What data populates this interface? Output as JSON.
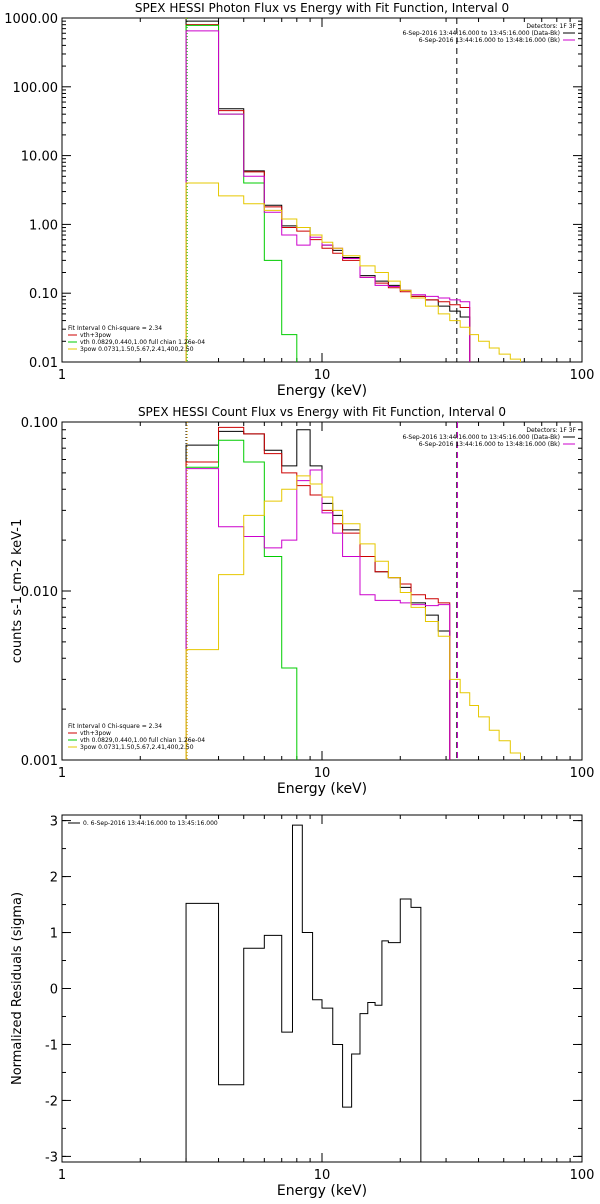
{
  "chart_data": [
    {
      "type": "line",
      "title": "SPEX HESSI Photon Flux vs Energy with Fit Function, Interval 0",
      "xlabel": "Energy (keV)",
      "ylabel": "",
      "xscale": "log",
      "yscale": "log",
      "xlim": [
        1,
        100
      ],
      "ylim": [
        0.01,
        1000
      ],
      "xticks": [
        {
          "v": 1,
          "label": "1"
        },
        {
          "v": 10,
          "label": "10"
        },
        {
          "v": 100,
          "label": "100"
        }
      ],
      "yticks": [
        {
          "v": 1000,
          "label": "1000.00"
        },
        {
          "v": 100,
          "label": "100.00"
        },
        {
          "v": 10,
          "label": "10.00"
        },
        {
          "v": 1,
          "label": "1.00"
        },
        {
          "v": 0.1,
          "label": "0.10"
        },
        {
          "v": 0.01,
          "label": "0.01"
        }
      ],
      "vlines": [
        {
          "x": 3.0,
          "color": "#e8a400",
          "dash": "1,2"
        },
        {
          "x": 3.03,
          "color": "#00cc00",
          "dash": "1,2"
        },
        {
          "x": 33.0,
          "color": "#000000",
          "dash": "6,4"
        }
      ],
      "legend_top": [
        "Detectors: 1F 3F",
        "6-Sep-2016 13:44:16.000 to 13:45:16.000 (Data-Bk)",
        "6-Sep-2016 13:44:16.000 to 13:48:16.000 (Bk)"
      ],
      "legend_top_colors": [
        "",
        "#000000",
        "#cc00cc"
      ],
      "legend_bottom": [
        "Fit Interval 0   Chi-square = 2.34",
        "vth+3pow",
        "vth 0.0829,0.440,1.00  full chian 1.26e-04",
        "3pow 0.0731,1.50,5.67,2.41,400,2.50"
      ],
      "legend_bottom_colors": [
        "",
        "#cc0000",
        "#00cc00",
        "#e6c800"
      ],
      "edges": [
        3,
        4,
        5,
        6,
        7,
        8,
        9,
        10,
        11,
        12,
        14,
        16,
        18,
        20,
        22,
        25,
        28,
        31,
        34,
        37,
        40,
        44,
        48,
        53,
        58,
        63,
        70,
        77
      ],
      "series": [
        {
          "color": "#000000",
          "values": [
            900,
            48,
            6,
            1.9,
            0.95,
            0.9,
            0.7,
            0.5,
            0.42,
            0.33,
            0.18,
            0.15,
            0.13,
            0.11,
            0.09,
            0.08,
            0.065,
            0.055,
            0.045
          ]
        },
        {
          "color": "#cc0000",
          "values": [
            800,
            45,
            5.8,
            1.8,
            0.9,
            0.8,
            0.6,
            0.45,
            0.38,
            0.3,
            0.17,
            0.14,
            0.12,
            0.105,
            0.09,
            0.08,
            0.075,
            0.068,
            0.062
          ]
        },
        {
          "color": "#00cc00",
          "values": [
            780,
            40,
            4,
            0.3,
            0.025
          ]
        },
        {
          "color": "#cc00cc",
          "values": [
            650,
            40,
            5,
            1.5,
            0.7,
            0.5,
            0.65,
            0.5,
            0.45,
            0.32,
            0.17,
            0.13,
            0.125,
            0.11,
            0.095,
            0.09,
            0.085,
            0.08,
            0.075
          ]
        },
        {
          "color": "#e6c800",
          "values": [
            4,
            2.6,
            2,
            1.6,
            1.2,
            0.9,
            0.7,
            0.55,
            0.45,
            0.35,
            0.25,
            0.2,
            0.15,
            0.11,
            0.085,
            0.065,
            0.05,
            0.04,
            0.032,
            0.025,
            0.02,
            0.016,
            0.013,
            0.011,
            0.009
          ]
        }
      ]
    },
    {
      "type": "line",
      "title": "SPEX HESSI Count Flux vs Energy with Fit Function, Interval 0",
      "xlabel": "Energy (keV)",
      "ylabel": "counts s-1 cm-2 keV-1",
      "xscale": "log",
      "yscale": "log",
      "xlim": [
        1,
        100
      ],
      "ylim": [
        0.001,
        0.1
      ],
      "xticks": [
        {
          "v": 1,
          "label": "1"
        },
        {
          "v": 10,
          "label": "10"
        },
        {
          "v": 100,
          "label": "100"
        }
      ],
      "yticks": [
        {
          "v": 0.1,
          "label": "0.100"
        },
        {
          "v": 0.01,
          "label": "0.010"
        },
        {
          "v": 0.001,
          "label": "0.001"
        }
      ],
      "vlines": [
        {
          "x": 3.0,
          "color": "#000000",
          "dash": "1,2"
        },
        {
          "x": 3.03,
          "color": "#e8a400",
          "dash": "1,2"
        },
        {
          "x": 33.0,
          "color": "#000000",
          "dash": "6,4"
        },
        {
          "x": 33.2,
          "color": "#cc00cc",
          "dash": "6,4"
        }
      ],
      "legend_top": [
        "Detectors: 1F 3F",
        "6-Sep-2016 13:44:16.000 to 13:45:16.000 (Data-Bk)",
        "6-Sep-2016 13:44:16.000 to 13:48:16.000 (Bk)"
      ],
      "legend_top_colors": [
        "",
        "#000000",
        "#cc00cc"
      ],
      "legend_bottom": [
        "Fit Interval 0   Chi-square = 2.34",
        "vth+3pow",
        "vth 0.0829,0.440,1.00  full chian 1.26e-04",
        "3pow 0.0731,1.50,5.67,2.41,400,2.50"
      ],
      "legend_bottom_colors": [
        "",
        "#cc0000",
        "#00cc00",
        "#e6c800"
      ],
      "edges": [
        3,
        4,
        5,
        6,
        7,
        8,
        9,
        10,
        11,
        12,
        14,
        16,
        18,
        20,
        22,
        25,
        28,
        31,
        34,
        37,
        40,
        44,
        48,
        53,
        58,
        63,
        70,
        77
      ],
      "series": [
        {
          "color": "#000000",
          "values": [
            0.073,
            0.088,
            0.085,
            0.068,
            0.055,
            0.09,
            0.055,
            0.033,
            0.028,
            0.023,
            0.016,
            0.013,
            0.012,
            0.0105,
            0.0085,
            0.0072,
            0.0058
          ]
        },
        {
          "color": "#cc0000",
          "values": [
            0.058,
            0.093,
            0.085,
            0.065,
            0.05,
            0.042,
            0.037,
            0.03,
            0.025,
            0.022,
            0.016,
            0.013,
            0.012,
            0.011,
            0.0095,
            0.009,
            0.0085
          ]
        },
        {
          "color": "#00cc00",
          "values": [
            0.054,
            0.078,
            0.058,
            0.016,
            0.0035
          ]
        },
        {
          "color": "#cc00cc",
          "values": [
            0.053,
            0.024,
            0.021,
            0.018,
            0.02,
            0.045,
            0.052,
            0.029,
            0.022,
            0.016,
            0.0095,
            0.0088,
            0.0088,
            0.0085,
            0.0083,
            0.0082,
            0.0083
          ]
        },
        {
          "color": "#e6c800",
          "values": [
            0.0045,
            0.0125,
            0.028,
            0.034,
            0.04,
            0.048,
            0.043,
            0.036,
            0.03,
            0.025,
            0.019,
            0.015,
            0.012,
            0.0098,
            0.008,
            0.0066,
            0.0054,
            0.003,
            0.0025,
            0.0021,
            0.0018,
            0.0015,
            0.0013,
            0.0011,
            0.00095
          ]
        }
      ]
    },
    {
      "type": "line",
      "title": "",
      "xlabel": "Energy (keV)",
      "ylabel": "Normalized Residuals (sigma)",
      "xscale": "log",
      "yscale": "linear",
      "xlim": [
        1,
        100
      ],
      "ylim": [
        -3.1,
        3.1
      ],
      "xticks": [
        {
          "v": 1,
          "label": "1"
        },
        {
          "v": 10,
          "label": "10"
        },
        {
          "v": 100,
          "label": "100"
        }
      ],
      "yticks": [
        {
          "v": 3,
          "label": "3"
        },
        {
          "v": 2,
          "label": "2"
        },
        {
          "v": 1,
          "label": "1"
        },
        {
          "v": 0,
          "label": "0"
        },
        {
          "v": -1,
          "label": "-1"
        },
        {
          "v": -2,
          "label": "-2"
        },
        {
          "v": -3,
          "label": "-3"
        }
      ],
      "vlines": [],
      "legend_top": [
        "0.  6-Sep-2016 13:44:16.000 to 13:45:16.000"
      ],
      "legend_top_colors": [
        "#000000"
      ],
      "legend_bottom": [],
      "legend_bottom_colors": [],
      "edges": [
        3,
        4,
        5,
        6,
        7,
        7.7,
        8.4,
        9.2,
        10,
        11,
        12,
        13,
        14,
        15,
        16,
        17,
        18,
        20,
        22,
        24,
        26,
        28,
        30,
        32
      ],
      "series": [
        {
          "color": "#000000",
          "values": [
            1.52,
            -1.72,
            0.72,
            0.95,
            -0.78,
            2.92,
            1.0,
            -0.2,
            -0.35,
            -1.0,
            -2.12,
            -1.17,
            -0.45,
            -0.25,
            -0.3,
            0.85,
            0.82,
            1.6,
            1.45
          ]
        }
      ]
    }
  ]
}
